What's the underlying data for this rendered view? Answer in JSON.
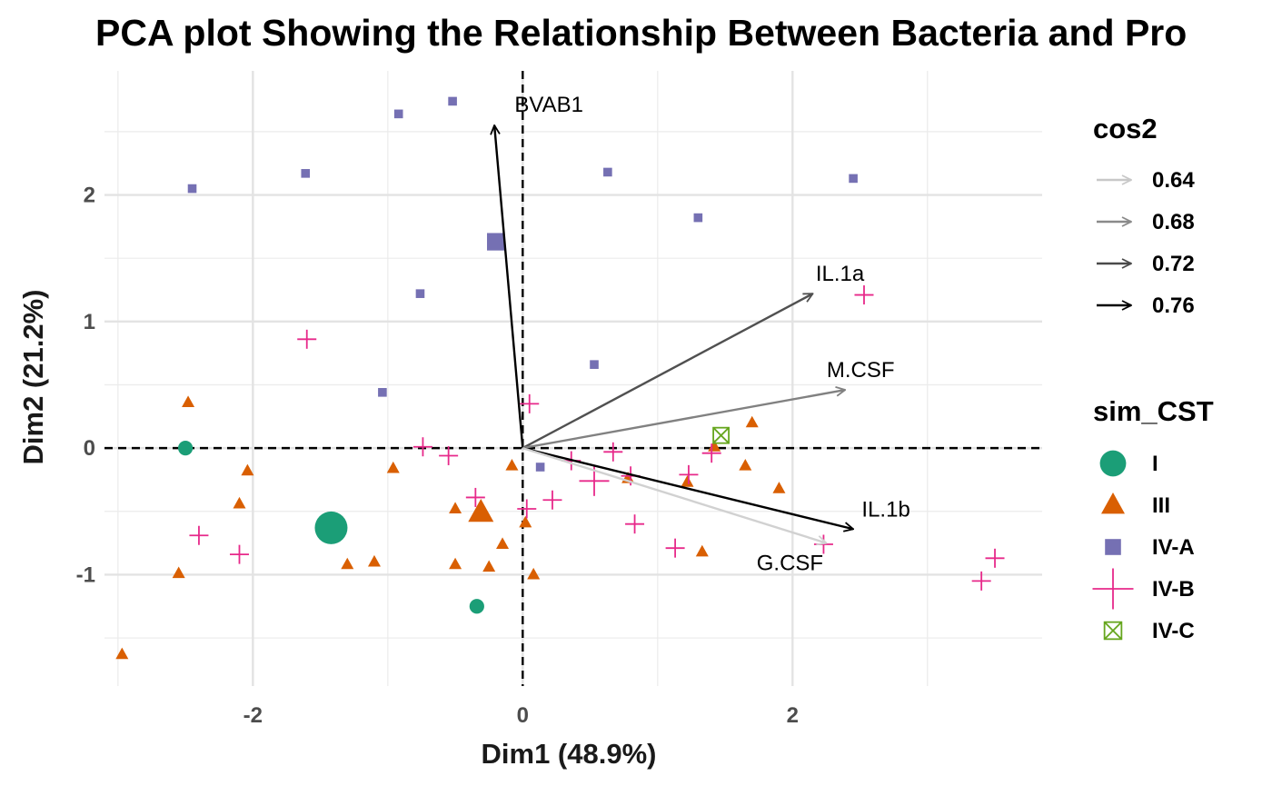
{
  "chart_data": {
    "type": "scatter",
    "title": "PCA plot Showing the Relationship Between Bacteria and Pro",
    "xlabel": "Dim1 (48.9%)",
    "ylabel": "Dim2 (21.2%)",
    "xlim": [
      -3.1,
      3.85
    ],
    "ylim": [
      -1.88,
      2.98
    ],
    "x_ticks": [
      -2,
      0,
      2
    ],
    "y_ticks": [
      -1,
      0,
      1,
      2
    ],
    "grid": true,
    "reference_lines": {
      "x": 0,
      "y": 0,
      "style": "dashed"
    },
    "legend_position": "right",
    "colors": {
      "I": "#1b9e77",
      "III": "#d95f02",
      "IV-A": "#7570b3",
      "IV-B": "#e7298a",
      "IV-C": "#66a61e"
    },
    "series": [
      {
        "name": "I",
        "shape": "circle",
        "points": [
          [
            -2.5,
            0.0
          ],
          [
            -0.34,
            -1.25
          ]
        ]
      },
      {
        "name": "III",
        "shape": "triangle",
        "points": [
          [
            -2.97,
            -1.63
          ],
          [
            -2.55,
            -0.99
          ],
          [
            -2.48,
            0.36
          ],
          [
            -2.1,
            -0.44
          ],
          [
            -2.04,
            -0.18
          ],
          [
            -1.3,
            -0.92
          ],
          [
            -1.1,
            -0.9
          ],
          [
            -0.96,
            -0.16
          ],
          [
            -0.5,
            -0.48
          ],
          [
            -0.5,
            -0.92
          ],
          [
            -0.25,
            -0.94
          ],
          [
            -0.15,
            -0.76
          ],
          [
            -0.08,
            -0.14
          ],
          [
            0.02,
            -0.59
          ],
          [
            0.08,
            -1.0
          ],
          [
            0.78,
            -0.24
          ],
          [
            1.22,
            -0.27
          ],
          [
            1.33,
            -0.82
          ],
          [
            1.42,
            0.01
          ],
          [
            1.65,
            -0.14
          ],
          [
            1.7,
            0.2
          ],
          [
            1.9,
            -0.32
          ]
        ]
      },
      {
        "name": "IV-A",
        "shape": "square",
        "points": [
          [
            -2.45,
            2.05
          ],
          [
            -1.61,
            2.17
          ],
          [
            -1.04,
            0.44
          ],
          [
            -0.92,
            2.64
          ],
          [
            -0.76,
            1.22
          ],
          [
            -0.52,
            2.74
          ],
          [
            0.13,
            -0.15
          ],
          [
            0.53,
            0.66
          ],
          [
            0.63,
            2.18
          ],
          [
            1.3,
            1.82
          ],
          [
            2.45,
            2.13
          ]
        ]
      },
      {
        "name": "IV-B",
        "shape": "plus",
        "points": [
          [
            -2.4,
            -0.69
          ],
          [
            -2.1,
            -0.84
          ],
          [
            -1.6,
            0.86
          ],
          [
            -0.74,
            0.01
          ],
          [
            -0.55,
            -0.06
          ],
          [
            -0.35,
            -0.39
          ],
          [
            0.03,
            -0.48
          ],
          [
            0.05,
            0.35
          ],
          [
            0.22,
            -0.41
          ],
          [
            0.36,
            -0.1
          ],
          [
            0.67,
            -0.03
          ],
          [
            0.8,
            -0.22
          ],
          [
            0.83,
            -0.6
          ],
          [
            1.13,
            -0.79
          ],
          [
            1.23,
            -0.21
          ],
          [
            1.4,
            -0.04
          ],
          [
            2.23,
            -0.76
          ],
          [
            2.53,
            1.21
          ],
          [
            3.4,
            -1.05
          ],
          [
            3.5,
            -0.87
          ]
        ]
      },
      {
        "name": "IV-C",
        "shape": "square-cross",
        "points": [
          [
            1.47,
            0.1
          ]
        ]
      }
    ],
    "centroids": [
      {
        "group": "I",
        "x": -1.42,
        "y": -0.63
      },
      {
        "group": "III",
        "x": -0.31,
        "y": -0.51
      },
      {
        "group": "IV-A",
        "x": -0.2,
        "y": 1.63
      },
      {
        "group": "IV-B",
        "x": 0.53,
        "y": -0.26
      }
    ],
    "variables": [
      {
        "name": "BVAB1",
        "x": -0.21,
        "y": 2.55,
        "cos2": 0.76
      },
      {
        "name": "IL.1a",
        "x": 2.15,
        "y": 1.22,
        "cos2": 0.71
      },
      {
        "name": "M.CSF",
        "x": 2.39,
        "y": 0.46,
        "cos2": 0.68
      },
      {
        "name": "IL.1b",
        "x": 2.45,
        "y": -0.64,
        "cos2": 0.76
      },
      {
        "name": "G.CSF",
        "x": 2.25,
        "y": -0.75,
        "cos2": 0.63
      }
    ],
    "legends": [
      {
        "title": "cos2",
        "entries": [
          "0.64",
          "0.68",
          "0.72",
          "0.76"
        ],
        "entry_colors": [
          "#c8c8c8",
          "#8a8a8a",
          "#4a4a4a",
          "#000000"
        ]
      },
      {
        "title": "sim_CST",
        "entries": [
          "I",
          "III",
          "IV-A",
          "IV-B",
          "IV-C"
        ]
      }
    ]
  }
}
